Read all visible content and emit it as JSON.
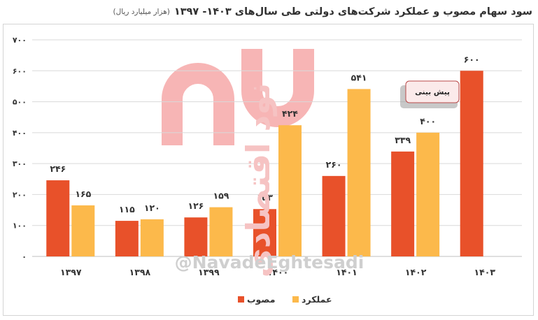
{
  "title": {
    "main": "سود سهام مصوب و عملکرد شرکت‌های دولتی طی سال‌های ۱۴۰۳- ۱۳۹۷",
    "unit": "(هزار میلیارد ریال)"
  },
  "watermark": {
    "handle": "@NavadeEghtesadi",
    "vertical_text": "نود اقتصادی"
  },
  "callout": {
    "text": "پیش بینی"
  },
  "colors": {
    "approved": "#e8512a",
    "performance": "#fcb94b",
    "grid": "#d9d9d9",
    "text": "#333333",
    "logo": "#f7b5b5"
  },
  "chart_data": {
    "type": "bar",
    "categories": [
      "۱۳۹۷",
      "۱۳۹۸",
      "۱۳۹۹",
      "۱۴۰۰",
      "۱۴۰۱",
      "۱۴۰۲",
      "۱۴۰۳"
    ],
    "series": [
      {
        "name": "مصوب",
        "values": [
          246,
          115,
          126,
          153,
          260,
          339,
          600
        ],
        "labels": [
          "۲۴۶",
          "۱۱۵",
          "۱۲۶",
          "۱۵۳",
          "۲۶۰",
          "۳۳۹",
          "۶۰۰"
        ],
        "color": "#e8512a"
      },
      {
        "name": "عملکرد",
        "values": [
          165,
          120,
          159,
          424,
          541,
          400,
          null
        ],
        "labels": [
          "۱۶۵",
          "۱۲۰",
          "۱۵۹",
          "۴۲۴",
          "۵۴۱",
          "۴۰۰",
          ""
        ],
        "color": "#fcb94b"
      }
    ],
    "ylim": [
      0,
      700
    ],
    "y_ticks": [
      0,
      100,
      200,
      300,
      400,
      500,
      600,
      700
    ],
    "y_tick_labels": [
      "۰",
      "۱۰۰",
      "۲۰۰",
      "۳۰۰",
      "۴۰۰",
      "۵۰۰",
      "۶۰۰",
      "۷۰۰"
    ],
    "grid": true,
    "legend_position": "bottom-center"
  }
}
